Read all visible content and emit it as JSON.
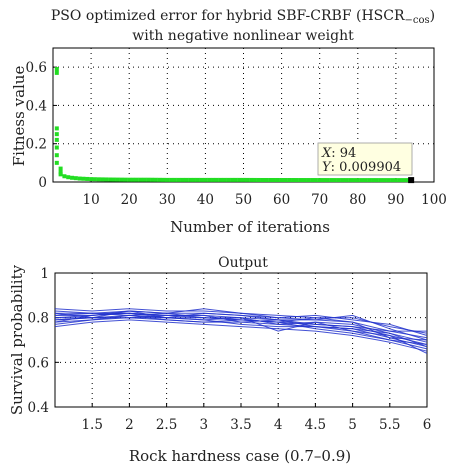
{
  "chart_data": [
    {
      "type": "scatter",
      "title_line1": "PSO optimized error for hybrid SBF-CRBF (HSCR",
      "title_sub": "−cos",
      "title_close": ")",
      "title_line2": "with negative nonlinear weight",
      "xlabel": "Number of iterations",
      "ylabel": "Fitness value",
      "xlim": [
        0,
        100
      ],
      "ylim": [
        0,
        0.7
      ],
      "xticks": [
        10,
        20,
        30,
        40,
        50,
        60,
        70,
        80,
        90,
        100
      ],
      "yticks": [
        0,
        0.2,
        0.4,
        0.6
      ],
      "ytick_labels": [
        "0",
        "0.2",
        "0.4",
        "0.6"
      ],
      "grid": true,
      "marker_color": "#22dd22",
      "x": [
        1,
        1,
        1,
        1,
        1,
        1,
        1,
        1,
        2,
        2,
        2,
        3,
        4,
        5,
        6,
        7,
        8,
        9,
        10,
        12,
        15,
        20,
        25,
        30,
        35,
        40,
        45,
        50,
        55,
        60,
        65,
        70,
        75,
        80,
        85,
        90,
        94
      ],
      "y": [
        0.59,
        0.57,
        0.28,
        0.25,
        0.22,
        0.18,
        0.14,
        0.1,
        0.07,
        0.05,
        0.04,
        0.03,
        0.025,
        0.022,
        0.02,
        0.018,
        0.017,
        0.016,
        0.015,
        0.014,
        0.013,
        0.012,
        0.012,
        0.011,
        0.011,
        0.011,
        0.011,
        0.011,
        0.0105,
        0.0105,
        0.0103,
        0.0102,
        0.0101,
        0.01,
        0.01,
        0.0099,
        0.009904
      ],
      "datatip": {
        "x_label": "X",
        "x_value": "94",
        "y_label": "Y",
        "y_value": "0.009904",
        "x": 94,
        "y": 0.009904
      }
    },
    {
      "type": "line",
      "title": "Output",
      "xlabel": "Rock hardness case (0.7–0.9)",
      "ylabel": "Survival probability",
      "xlim": [
        1,
        6
      ],
      "ylim": [
        0.4,
        1
      ],
      "xticks": [
        1.5,
        2,
        2.5,
        3,
        3.5,
        4,
        4.5,
        5,
        5.5,
        6
      ],
      "yticks": [
        0.4,
        0.6,
        0.8,
        1
      ],
      "ytick_labels": [
        "0.4",
        "0.6",
        "0.8",
        "1"
      ],
      "grid": true,
      "line_color": "#2233cc",
      "x": [
        1,
        1.5,
        2,
        2.5,
        3,
        3.5,
        4,
        4.5,
        5,
        5.5,
        6
      ],
      "series": [
        {
          "values": [
            0.8,
            0.8,
            0.81,
            0.8,
            0.8,
            0.79,
            0.78,
            0.77,
            0.76,
            0.72,
            0.68
          ]
        },
        {
          "values": [
            0.82,
            0.82,
            0.82,
            0.81,
            0.81,
            0.8,
            0.79,
            0.79,
            0.78,
            0.74,
            0.71
          ]
        },
        {
          "values": [
            0.78,
            0.79,
            0.8,
            0.79,
            0.78,
            0.78,
            0.77,
            0.76,
            0.74,
            0.7,
            0.66
          ]
        },
        {
          "values": [
            0.84,
            0.83,
            0.84,
            0.83,
            0.83,
            0.82,
            0.81,
            0.8,
            0.8,
            0.76,
            0.73
          ]
        },
        {
          "values": [
            0.76,
            0.78,
            0.79,
            0.78,
            0.77,
            0.76,
            0.75,
            0.74,
            0.72,
            0.69,
            0.65
          ]
        },
        {
          "values": [
            0.81,
            0.81,
            0.83,
            0.82,
            0.82,
            0.81,
            0.8,
            0.79,
            0.81,
            0.75,
            0.7
          ]
        },
        {
          "values": [
            0.79,
            0.8,
            0.8,
            0.8,
            0.79,
            0.77,
            0.76,
            0.76,
            0.75,
            0.71,
            0.67
          ]
        },
        {
          "values": [
            0.83,
            0.82,
            0.83,
            0.82,
            0.84,
            0.82,
            0.8,
            0.81,
            0.79,
            0.77,
            0.72
          ]
        },
        {
          "values": [
            0.77,
            0.79,
            0.81,
            0.79,
            0.78,
            0.79,
            0.78,
            0.75,
            0.73,
            0.7,
            0.68
          ]
        },
        {
          "values": [
            0.8,
            0.81,
            0.82,
            0.81,
            0.8,
            0.8,
            0.74,
            0.78,
            0.77,
            0.73,
            0.69
          ]
        },
        {
          "values": [
            0.82,
            0.8,
            0.8,
            0.81,
            0.81,
            0.78,
            0.79,
            0.77,
            0.76,
            0.74,
            0.74
          ]
        },
        {
          "values": [
            0.78,
            0.81,
            0.82,
            0.8,
            0.79,
            0.8,
            0.77,
            0.78,
            0.74,
            0.72,
            0.64
          ]
        },
        {
          "values": [
            0.81,
            0.82,
            0.81,
            0.82,
            0.8,
            0.79,
            0.78,
            0.8,
            0.78,
            0.71,
            0.7
          ]
        },
        {
          "values": [
            0.79,
            0.8,
            0.83,
            0.8,
            0.82,
            0.81,
            0.79,
            0.76,
            0.75,
            0.73,
            0.67
          ]
        }
      ]
    }
  ]
}
